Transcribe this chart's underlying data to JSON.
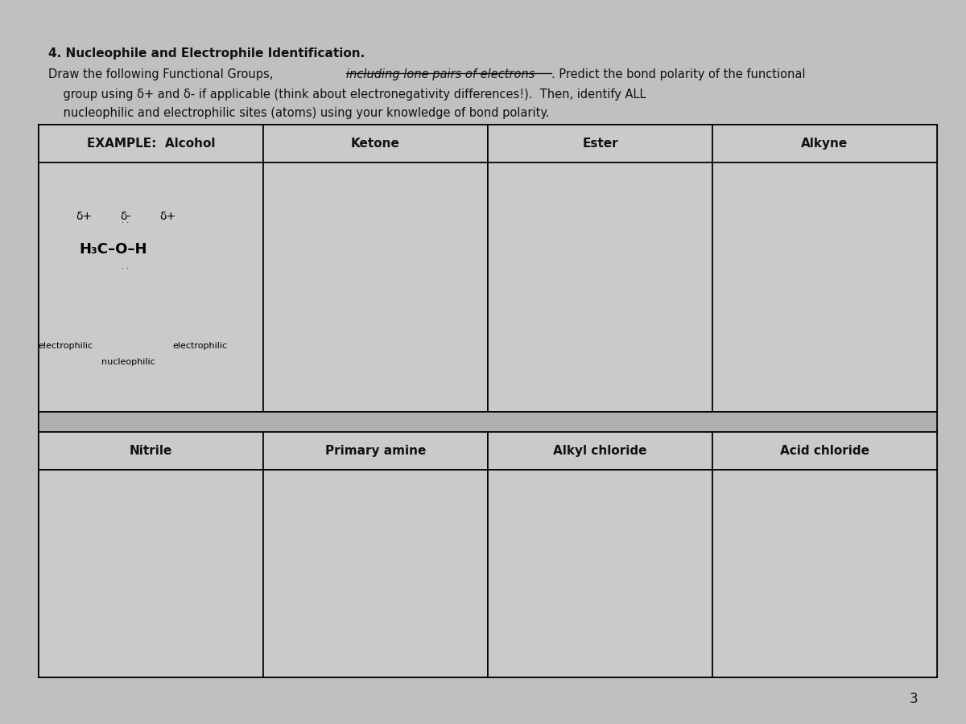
{
  "title_bold": "4. Nucleophile and Electrophile Identification.",
  "subtitle_line1a": "Draw the following Functional Groups, ",
  "subtitle_line1b": "including lone pairs of electrons",
  "subtitle_line1c": ". Predict the bond polarity of the functional",
  "subtitle_line2": "    group using δ+ and δ- if applicable (think about electronegativity differences!).  Then, identify ALL",
  "subtitle_line3": "    nucleophilic and electrophilic sites (atoms) using your knowledge of bond polarity.",
  "row1_headers": [
    "EXAMPLE:  Alcohol",
    "Ketone",
    "Ester",
    "Alkyne"
  ],
  "row2_headers": [
    "Nitrile",
    "Primary amine",
    "Alkyl chloride",
    "Acid chloride"
  ],
  "background_color": "#c0c0c0",
  "cell_color": "#cacaca",
  "spacer_color": "#b0b0b0",
  "page_number": "3",
  "text_color": "#111111"
}
